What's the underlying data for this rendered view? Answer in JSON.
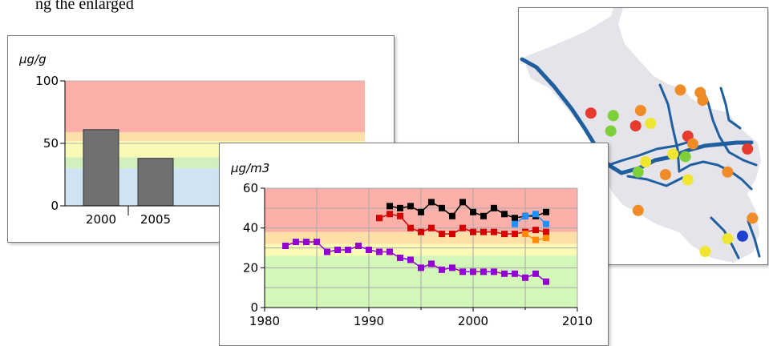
{
  "top_text": "ng the enlarged",
  "chart_data": [
    {
      "type": "bar",
      "ylabel": "µg/g",
      "ylim": [
        0,
        100
      ],
      "yticks": [
        0,
        50,
        100
      ],
      "categories": [
        "2000",
        "2005"
      ],
      "values": [
        61,
        38
      ],
      "bar_color": "#707070",
      "bands": [
        {
          "from": 0,
          "to": 30,
          "color": "#cfe3f2"
        },
        {
          "from": 30,
          "to": 39,
          "color": "#d2f0be"
        },
        {
          "from": 39,
          "to": 52,
          "color": "#fafab4"
        },
        {
          "from": 52,
          "to": 59,
          "color": "#fde0a8"
        },
        {
          "from": 59,
          "to": 100,
          "color": "#fdb0aa"
        }
      ]
    },
    {
      "type": "scatter",
      "ylabel": "µg/m3",
      "xlim": [
        1980,
        2010
      ],
      "ylim": [
        0,
        60
      ],
      "xticks": [
        1980,
        1990,
        2000,
        2010
      ],
      "yticks": [
        0,
        20,
        40,
        60
      ],
      "grid": true,
      "bands": [
        {
          "from": 0,
          "to": 26,
          "color": "#d3f7b8"
        },
        {
          "from": 26,
          "to": 32,
          "color": "#fafab4"
        },
        {
          "from": 32,
          "to": 38,
          "color": "#fde0a8"
        },
        {
          "from": 38,
          "to": 60,
          "color": "#fdb0aa"
        }
      ],
      "series": [
        {
          "color": "#000000",
          "x": [
            1992,
            1993,
            1994,
            1995,
            1996,
            1997,
            1998,
            1999,
            2000,
            2001,
            2002,
            2003,
            2004,
            2005,
            2006,
            2007
          ],
          "y": [
            51,
            50,
            51,
            48,
            53,
            50,
            46,
            53,
            48,
            46,
            50,
            47,
            45,
            46,
            46,
            48
          ]
        },
        {
          "color": "#d40000",
          "x": [
            1991,
            1992,
            1993,
            1994,
            1995,
            1996,
            1997,
            1998,
            1999,
            2000,
            2001,
            2002,
            2003,
            2004,
            2005,
            2006,
            2007
          ],
          "y": [
            45,
            47,
            46,
            40,
            38,
            40,
            37,
            37,
            40,
            38,
            38,
            38,
            37,
            37,
            38,
            39,
            38
          ]
        },
        {
          "color": "#ff8c00",
          "x": [
            2005,
            2006,
            2007
          ],
          "y": [
            37,
            34,
            35
          ]
        },
        {
          "color": "#1e90ff",
          "x": [
            2004,
            2005,
            2006,
            2007
          ],
          "y": [
            42,
            46,
            47,
            42
          ]
        },
        {
          "color": "#9400d3",
          "x": [
            1982,
            1983,
            1984,
            1985,
            1986,
            1987,
            1988,
            1989,
            1990,
            1991,
            1992,
            1993,
            1994,
            1995,
            1996,
            1997,
            1998,
            1999,
            2000,
            2001,
            2002,
            2003,
            2004,
            2005,
            2006,
            2007
          ],
          "y": [
            31,
            33,
            33,
            33,
            28,
            29,
            29,
            31,
            29,
            28,
            28,
            25,
            24,
            20,
            22,
            19,
            20,
            18,
            18,
            18,
            18,
            17,
            17,
            15,
            17,
            13
          ]
        }
      ]
    }
  ],
  "map": {
    "land_color": "#e4e4ea",
    "water_color": "#1f5f9f",
    "points": [
      {
        "x": 0.29,
        "y": 0.41,
        "color": "#e63a2e"
      },
      {
        "x": 0.38,
        "y": 0.42,
        "color": "#7ed03a"
      },
      {
        "x": 0.37,
        "y": 0.48,
        "color": "#7ed03a"
      },
      {
        "x": 0.49,
        "y": 0.4,
        "color": "#f08c28"
      },
      {
        "x": 0.47,
        "y": 0.46,
        "color": "#e63a2e"
      },
      {
        "x": 0.53,
        "y": 0.45,
        "color": "#f0e632"
      },
      {
        "x": 0.65,
        "y": 0.32,
        "color": "#f08c28"
      },
      {
        "x": 0.73,
        "y": 0.33,
        "color": "#f08c28"
      },
      {
        "x": 0.74,
        "y": 0.36,
        "color": "#f08c28"
      },
      {
        "x": 0.68,
        "y": 0.5,
        "color": "#e63a2e"
      },
      {
        "x": 0.7,
        "y": 0.53,
        "color": "#f08c28"
      },
      {
        "x": 0.62,
        "y": 0.57,
        "color": "#f0e632"
      },
      {
        "x": 0.67,
        "y": 0.58,
        "color": "#7ed03a"
      },
      {
        "x": 0.51,
        "y": 0.6,
        "color": "#f0e632"
      },
      {
        "x": 0.48,
        "y": 0.64,
        "color": "#7ed03a"
      },
      {
        "x": 0.59,
        "y": 0.65,
        "color": "#f08c28"
      },
      {
        "x": 0.68,
        "y": 0.67,
        "color": "#f0e632"
      },
      {
        "x": 0.84,
        "y": 0.64,
        "color": "#f08c28"
      },
      {
        "x": 0.92,
        "y": 0.55,
        "color": "#e63a2e"
      },
      {
        "x": 0.48,
        "y": 0.79,
        "color": "#f08c28"
      },
      {
        "x": 0.94,
        "y": 0.82,
        "color": "#f08c28"
      },
      {
        "x": 0.9,
        "y": 0.89,
        "color": "#2040d0"
      },
      {
        "x": 0.84,
        "y": 0.9,
        "color": "#f0e632"
      },
      {
        "x": 0.75,
        "y": 0.95,
        "color": "#f0e632"
      }
    ]
  }
}
